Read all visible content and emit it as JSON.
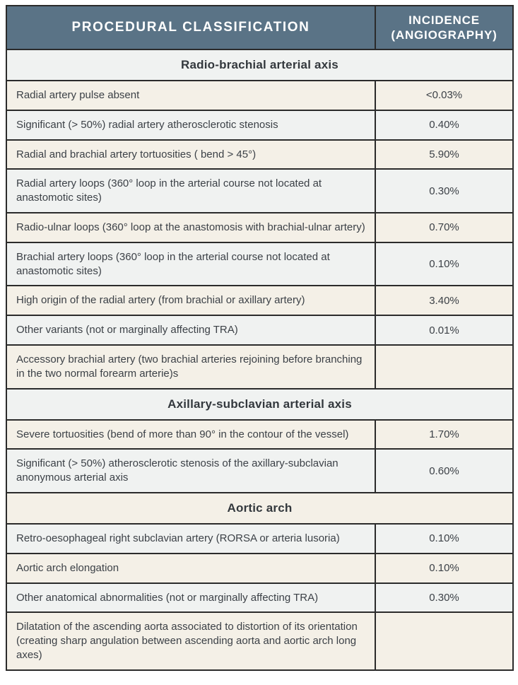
{
  "colors": {
    "header_bg": "#5a7386",
    "header_text": "#ffffff",
    "row_cream": "#f4f0e7",
    "row_gray": "#f0f2f1",
    "border": "#2b2b2b",
    "body_text": "#3c4147"
  },
  "table": {
    "columns": [
      "PROCEDURAL CLASSIFICATION",
      "INCIDENCE (ANGIOGRAPHY)"
    ],
    "sections": [
      {
        "title": "Radio-brachial arterial axis",
        "rows": [
          {
            "label": "Radial artery pulse absent",
            "incidence": "<0.03%"
          },
          {
            "label": "Significant (> 50%) radial artery atherosclerotic stenosis",
            "incidence": "0.40%"
          },
          {
            "label": "Radial and brachial artery tortuosities ( bend > 45°)",
            "incidence": "5.90%"
          },
          {
            "label": "Radial artery loops (360° loop in the arterial course not located at anastomotic sites)",
            "incidence": "0.30%"
          },
          {
            "label": "Radio-ulnar loops (360° loop at the anastomosis with brachial-ulnar artery)",
            "incidence": "0.70%"
          },
          {
            "label": "Brachial artery loops (360° loop in the arterial course not located at anastomotic sites)",
            "incidence": "0.10%"
          },
          {
            "label": "High origin of the radial artery (from brachial or axillary artery)",
            "incidence": "3.40%"
          },
          {
            "label": "Other variants (not or marginally affecting TRA)",
            "incidence": "0.01%"
          },
          {
            "label": "Accessory brachial artery (two brachial arteries rejoining before branching in the two normal forearm arterie)s",
            "incidence": ""
          }
        ]
      },
      {
        "title": "Axillary-subclavian arterial axis",
        "rows": [
          {
            "label": "Severe tortuosities (bend of more than 90° in the contour of the vessel)",
            "incidence": "1.70%"
          },
          {
            "label": "Significant (> 50%) atherosclerotic stenosis of the axillary-subclavian anonymous arterial axis",
            "incidence": "0.60%"
          }
        ]
      },
      {
        "title": "Aortic arch",
        "rows": [
          {
            "label": "Retro-oesophageal right subclavian artery (RORSA or arteria lusoria)",
            "incidence": "0.10%"
          },
          {
            "label": "Aortic arch elongation",
            "incidence": "0.10%"
          },
          {
            "label": "Other anatomical abnormalities (not or marginally affecting TRA)",
            "incidence": "0.30%"
          },
          {
            "label": "Dilatation of the ascending aorta associated to distortion of its orientation (creating sharp angulation between ascending aorta and aortic arch long axes)",
            "incidence": ""
          }
        ]
      }
    ]
  }
}
